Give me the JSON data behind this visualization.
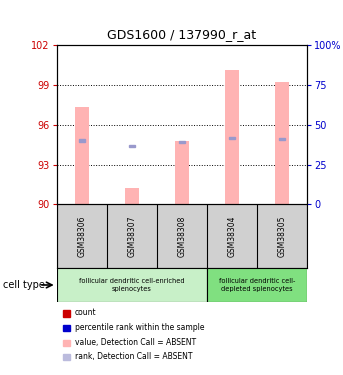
{
  "title": "GDS1600 / 137990_r_at",
  "samples": [
    "GSM38306",
    "GSM38307",
    "GSM38308",
    "GSM38304",
    "GSM38305"
  ],
  "ylim_left": [
    90,
    102
  ],
  "ylim_right": [
    0,
    100
  ],
  "yticks_left": [
    90,
    93,
    96,
    99,
    102
  ],
  "yticks_right": [
    0,
    25,
    50,
    75,
    100
  ],
  "ytick_labels_right": [
    "0",
    "25",
    "50",
    "75",
    "100%"
  ],
  "pink_bar_heights": [
    97.3,
    91.2,
    94.8,
    100.1,
    99.2
  ],
  "blue_square_y": [
    94.8,
    94.4,
    94.7,
    95.0,
    94.9
  ],
  "pink_bar_color": "#FFB3B3",
  "blue_sq_color": "#9999CC",
  "red_sq_color": "#CC0000",
  "red_tick_color": "#CC0000",
  "blue_tick_color": "#0000CC",
  "group1_label": "follicular dendritic cell-enriched\nsplenocytes",
  "group2_label": "follicular dendritic cell-\ndepleted splenocytes",
  "group1_color": "#C8F0C8",
  "group2_color": "#80E080",
  "sample_box_color": "#D0D0D0",
  "cell_type_label": "cell type",
  "legend_labels": [
    "count",
    "percentile rank within the sample",
    "value, Detection Call = ABSENT",
    "rank, Detection Call = ABSENT"
  ],
  "legend_colors": [
    "#CC0000",
    "#0000CC",
    "#FFB3B3",
    "#BBBBDD"
  ]
}
